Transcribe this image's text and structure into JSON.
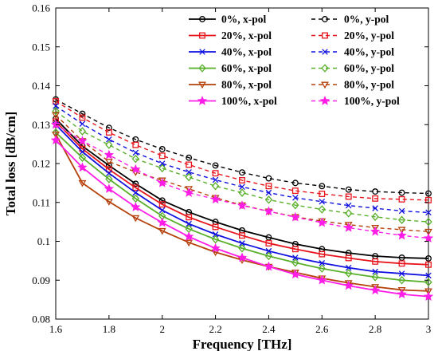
{
  "chart_data": {
    "type": "line",
    "xlabel": "Frequency [THz]",
    "ylabel": "Total loss [dB/cm]",
    "xlim": [
      1.6,
      3.0
    ],
    "ylim": [
      0.08,
      0.16
    ],
    "xticks": [
      "1.6",
      "1.8",
      "2",
      "2.2",
      "2.4",
      "2.6",
      "2.8",
      "3"
    ],
    "yticks": [
      "0.08",
      "0.09",
      "0.1",
      "0.11",
      "0.12",
      "0.13",
      "0.14",
      "0.15",
      "0.16"
    ],
    "grid": false,
    "legend_position": "top-right",
    "x": [
      1.6,
      1.7,
      1.8,
      1.9,
      2.0,
      2.1,
      2.2,
      2.3,
      2.4,
      2.5,
      2.6,
      2.7,
      2.8,
      2.9,
      3.0
    ],
    "series": [
      {
        "name": "0%, x-pol",
        "color": "#000000",
        "dash": "solid",
        "marker": "circle",
        "values": [
          0.1315,
          0.1245,
          0.1195,
          0.1148,
          0.1105,
          0.1075,
          0.105,
          0.1028,
          0.101,
          0.0993,
          0.098,
          0.097,
          0.0962,
          0.0958,
          0.0956
        ]
      },
      {
        "name": "20%, x-pol",
        "color": "#e8141c",
        "dash": "solid",
        "marker": "square",
        "values": [
          0.1308,
          0.1238,
          0.1185,
          0.1138,
          0.1095,
          0.1062,
          0.1037,
          0.1015,
          0.0995,
          0.098,
          0.0967,
          0.0957,
          0.0948,
          0.0943,
          0.094
        ]
      },
      {
        "name": "40%, x-pol",
        "color": "#1010e0",
        "dash": "solid",
        "marker": "x",
        "values": [
          0.13,
          0.123,
          0.1175,
          0.1125,
          0.108,
          0.1045,
          0.1018,
          0.0995,
          0.0975,
          0.0958,
          0.0944,
          0.0932,
          0.0922,
          0.0917,
          0.0912
        ]
      },
      {
        "name": "60%, x-pol",
        "color": "#58b02a",
        "dash": "solid",
        "marker": "diamond",
        "values": [
          0.128,
          0.1215,
          0.116,
          0.111,
          0.1065,
          0.1032,
          0.1005,
          0.0982,
          0.0962,
          0.0945,
          0.093,
          0.0918,
          0.0908,
          0.09,
          0.0895
        ]
      },
      {
        "name": "80%, x-pol",
        "color": "#b5400a",
        "dash": "solid",
        "marker": "triangle-down",
        "values": [
          0.1275,
          0.115,
          0.1102,
          0.106,
          0.1027,
          0.0997,
          0.0972,
          0.0952,
          0.0935,
          0.092,
          0.0905,
          0.0893,
          0.0883,
          0.0875,
          0.0872
        ]
      },
      {
        "name": "100%, x-pol",
        "color": "#ff1ee6",
        "dash": "solid",
        "marker": "star",
        "values": [
          0.126,
          0.119,
          0.1135,
          0.1088,
          0.1048,
          0.1012,
          0.0982,
          0.0958,
          0.0935,
          0.0915,
          0.09,
          0.0886,
          0.0874,
          0.0864,
          0.0858
        ]
      },
      {
        "name": "0%, y-pol",
        "color": "#000000",
        "dash": "dashed",
        "marker": "circle",
        "values": [
          0.1365,
          0.1328,
          0.1292,
          0.1262,
          0.1237,
          0.1215,
          0.1195,
          0.1177,
          0.1162,
          0.115,
          0.1142,
          0.1133,
          0.1128,
          0.1125,
          0.1123
        ]
      },
      {
        "name": "20%, y-pol",
        "color": "#e8141c",
        "dash": "dashed",
        "marker": "square",
        "values": [
          0.136,
          0.1318,
          0.128,
          0.1248,
          0.122,
          0.1197,
          0.1175,
          0.1157,
          0.1142,
          0.113,
          0.1122,
          0.1115,
          0.111,
          0.1108,
          0.1106
        ]
      },
      {
        "name": "40%, y-pol",
        "color": "#1010e0",
        "dash": "dashed",
        "marker": "x",
        "values": [
          0.1348,
          0.1302,
          0.1262,
          0.1228,
          0.12,
          0.1178,
          0.1158,
          0.114,
          0.1125,
          0.1112,
          0.1102,
          0.1092,
          0.1085,
          0.1078,
          0.1074
        ]
      },
      {
        "name": "60%, y-pol",
        "color": "#58b02a",
        "dash": "dashed",
        "marker": "diamond",
        "values": [
          0.1335,
          0.1283,
          0.1248,
          0.1212,
          0.1188,
          0.1165,
          0.1142,
          0.1125,
          0.1107,
          0.1093,
          0.1082,
          0.1072,
          0.1063,
          0.1055,
          0.105
        ]
      },
      {
        "name": "80%, y-pol",
        "color": "#b5400a",
        "dash": "dashed",
        "marker": "triangle-down",
        "values": [
          0.1325,
          0.1258,
          0.1205,
          0.1178,
          0.1157,
          0.1135,
          0.1112,
          0.1093,
          0.1077,
          0.1063,
          0.1052,
          0.1043,
          0.1035,
          0.103,
          0.1025
        ]
      },
      {
        "name": "100%, y-pol",
        "color": "#ff1ee6",
        "dash": "dashed",
        "marker": "star",
        "values": [
          0.13,
          0.1258,
          0.1222,
          0.1185,
          0.115,
          0.1125,
          0.1108,
          0.1092,
          0.1077,
          0.1062,
          0.1048,
          0.1035,
          0.1025,
          0.1015,
          0.1008
        ]
      }
    ]
  }
}
